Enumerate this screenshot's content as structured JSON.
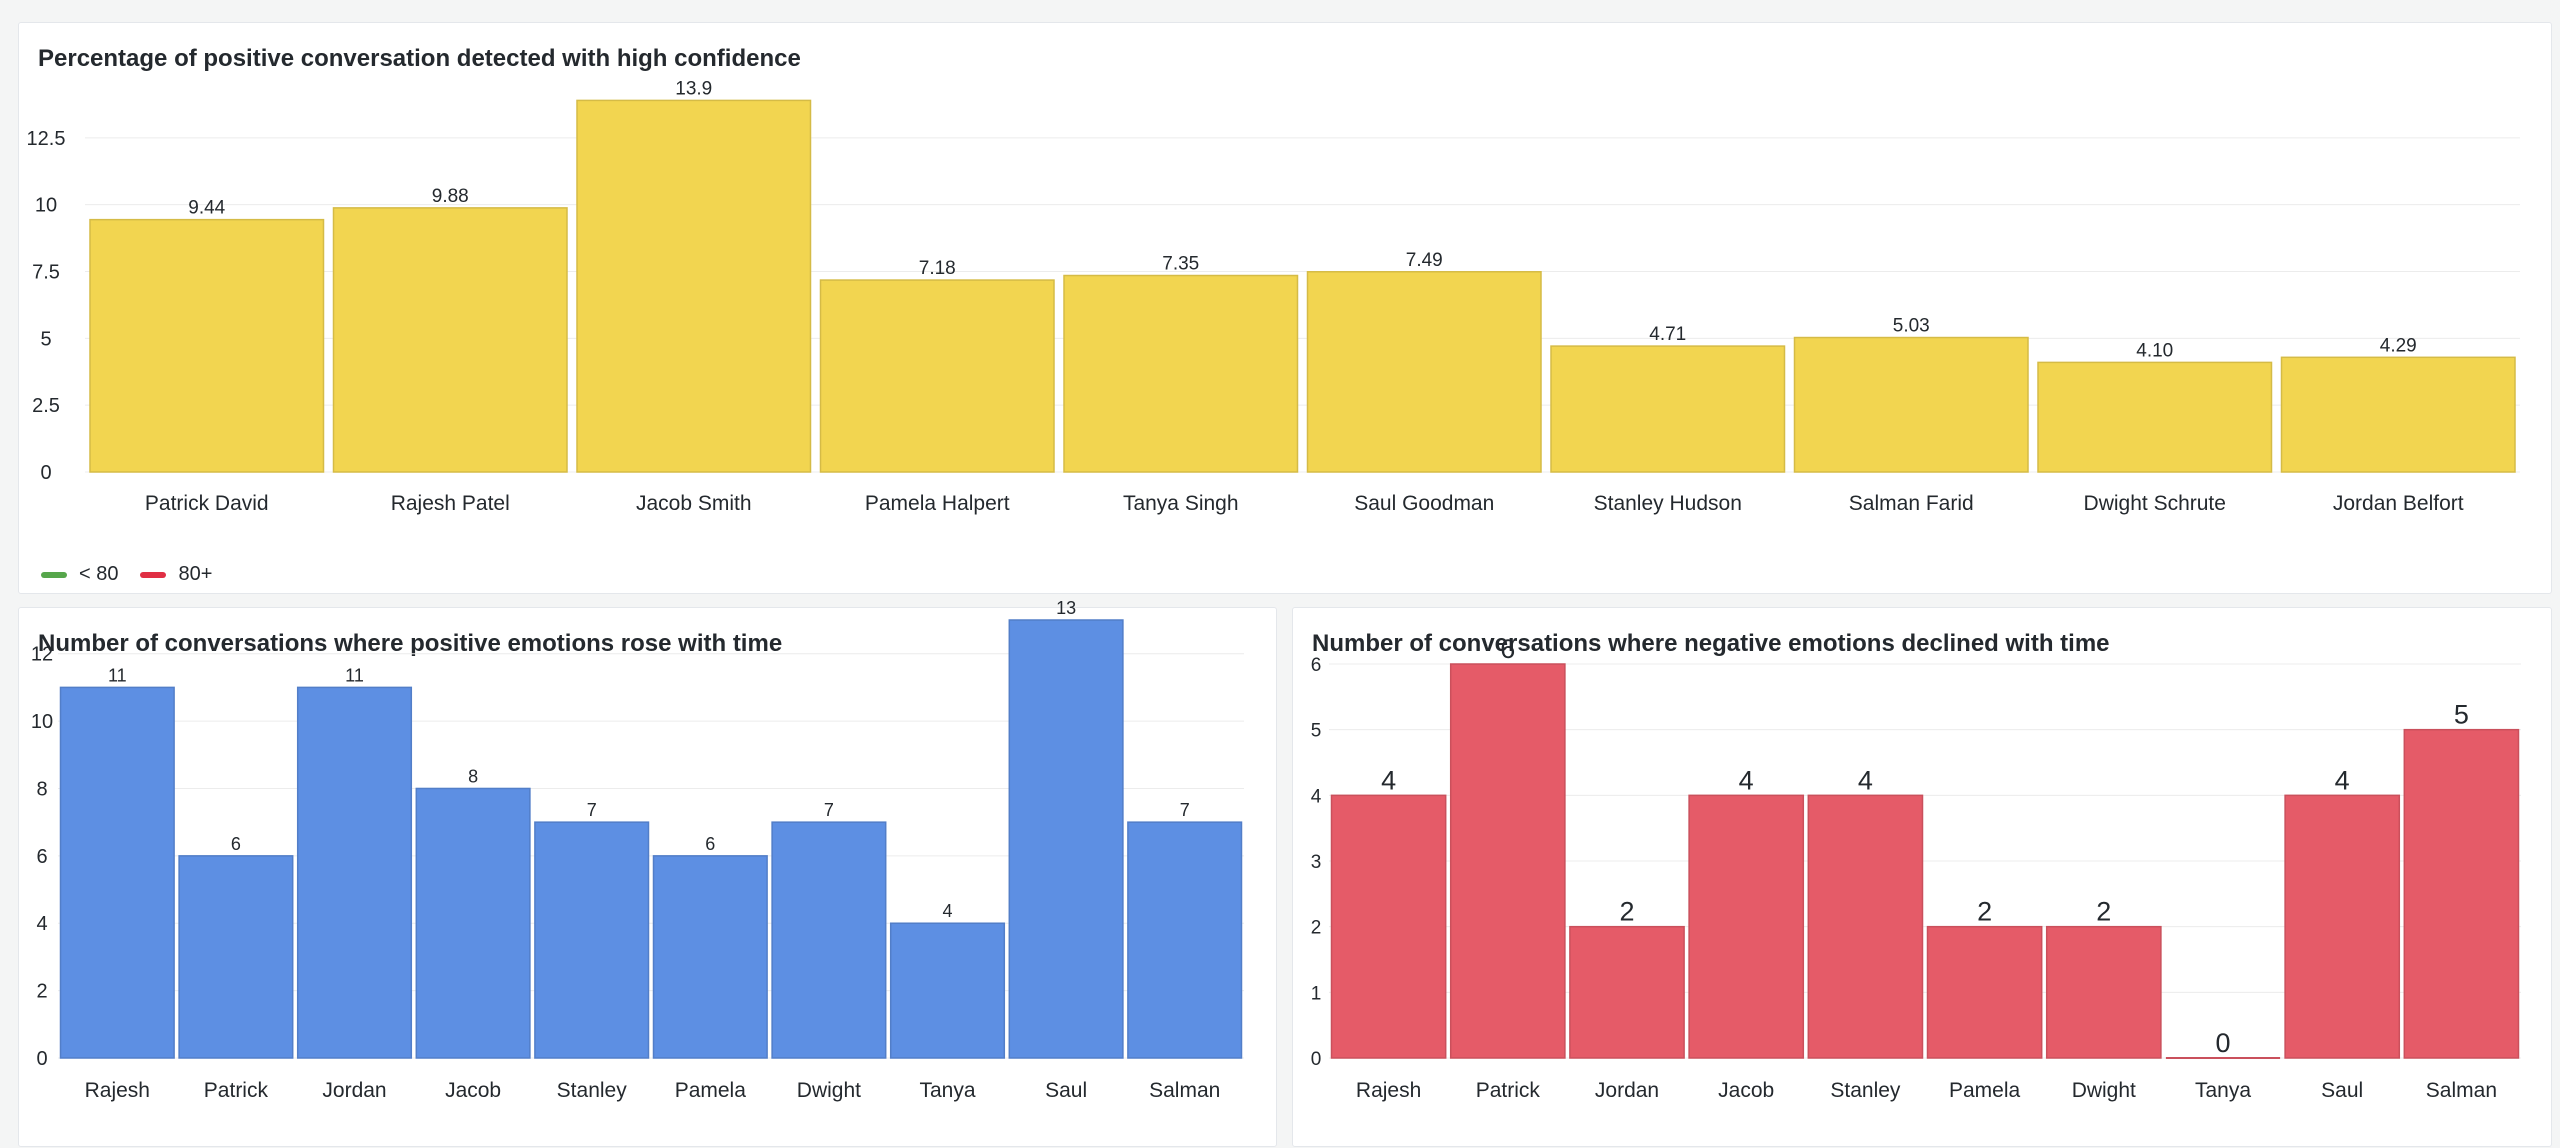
{
  "panels": {
    "top": {
      "title": "Percentage of positive conversation detected with high confidence",
      "legend": [
        {
          "label": "< 80",
          "color": "#56a64b"
        },
        {
          "label": "80+",
          "color": "#e02f44"
        }
      ]
    },
    "bottom_left": {
      "title": "Number of conversations where positive emotions rose with time"
    },
    "bottom_right": {
      "title": "Number of conversations where negative emotions declined with time"
    }
  },
  "chart_data": [
    {
      "type": "bar",
      "title": "Percentage of positive conversation detected with high confidence",
      "categories": [
        "Patrick David",
        "Rajesh Patel",
        "Jacob Smith",
        "Pamela Halpert",
        "Tanya Singh",
        "Saul Goodman",
        "Stanley Hudson",
        "Salman Farid",
        "Dwight Schrute",
        "Jordan Belfort"
      ],
      "values": [
        9.44,
        9.88,
        13.9,
        7.18,
        7.35,
        7.49,
        4.71,
        5.03,
        4.1,
        4.29
      ],
      "value_labels": [
        "9.44",
        "9.88",
        "13.9",
        "7.18",
        "7.35",
        "7.49",
        "4.71",
        "5.03",
        "4.10",
        "4.29"
      ],
      "yticks": [
        "0",
        "2.5",
        "5",
        "7.5",
        "10",
        "12.5"
      ],
      "ylim": [
        0,
        15
      ],
      "bar_color": "#f2d550",
      "grid": true
    },
    {
      "type": "bar",
      "title": "Number of conversations where positive emotions rose with time",
      "categories": [
        "Rajesh",
        "Patrick",
        "Jordan",
        "Jacob",
        "Stanley",
        "Pamela",
        "Dwight",
        "Tanya",
        "Saul",
        "Salman"
      ],
      "values": [
        11,
        6,
        11,
        8,
        7,
        6,
        7,
        4,
        13,
        7
      ],
      "value_labels": [
        "11",
        "6",
        "11",
        "8",
        "7",
        "6",
        "7",
        "4",
        "13",
        "7"
      ],
      "yticks": [
        "0",
        "2",
        "4",
        "6",
        "8",
        "10",
        "12"
      ],
      "ylim": [
        0,
        13
      ],
      "bar_color": "#5d8fe3",
      "grid": true
    },
    {
      "type": "bar",
      "title": "Number of conversations where negative emotions declined with time",
      "categories": [
        "Rajesh",
        "Patrick",
        "Jordan",
        "Jacob",
        "Stanley",
        "Pamela",
        "Dwight",
        "Tanya",
        "Saul",
        "Salman"
      ],
      "values": [
        4,
        6,
        2,
        4,
        4,
        2,
        2,
        0,
        4,
        5
      ],
      "value_labels": [
        "4",
        "6",
        "2",
        "4",
        "4",
        "2",
        "2",
        "0",
        "4",
        "5"
      ],
      "yticks": [
        "0",
        "1",
        "2",
        "3",
        "4",
        "5",
        "6"
      ],
      "ylim": [
        0,
        6
      ],
      "bar_color": "#e55b68",
      "grid": true
    }
  ]
}
